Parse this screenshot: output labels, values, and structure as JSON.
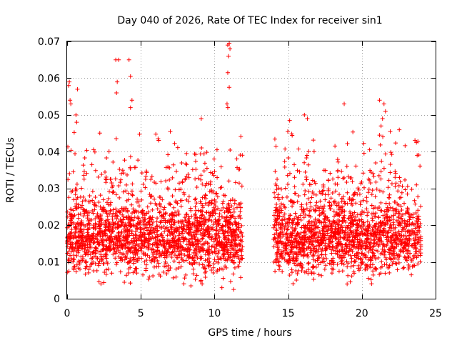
{
  "chart_data": {
    "type": "scatter",
    "title": "Day 040 of 2026, Rate Of TEC Index for receiver sin1",
    "xlabel": "GPS time / hours",
    "ylabel": "ROTI / TECUs",
    "xlim": [
      0,
      25
    ],
    "ylim": [
      0,
      0.07
    ],
    "xticks": [
      0,
      5,
      10,
      15,
      20,
      25
    ],
    "xtick_labels": [
      "0",
      "5",
      "10",
      "15",
      "20",
      "25"
    ],
    "yticks": [
      0,
      0.01,
      0.02,
      0.03,
      0.04,
      0.05,
      0.06,
      0.07
    ],
    "ytick_labels": [
      "0",
      "0.01",
      "0.02",
      "0.03",
      "0.04",
      "0.05",
      "0.06",
      "0.07"
    ],
    "grid": true,
    "marker": "+",
    "color": "#ff0000",
    "series": [
      {
        "name": "ROTI",
        "segments": [
          {
            "x_start": 0.0,
            "x_end": 11.9,
            "typical_min": 0.006,
            "typical_max": 0.03,
            "median": 0.016
          },
          {
            "x_start": 14.0,
            "x_end": 24.0,
            "typical_min": 0.006,
            "typical_max": 0.03,
            "median": 0.016
          }
        ],
        "outliers": [
          {
            "x": 0.1,
            "y": 0.058
          },
          {
            "x": 0.15,
            "y": 0.059
          },
          {
            "x": 0.2,
            "y": 0.054
          },
          {
            "x": 0.25,
            "y": 0.053
          },
          {
            "x": 0.7,
            "y": 0.057
          },
          {
            "x": 0.6,
            "y": 0.05
          },
          {
            "x": 0.65,
            "y": 0.048
          },
          {
            "x": 3.3,
            "y": 0.065
          },
          {
            "x": 3.5,
            "y": 0.065
          },
          {
            "x": 4.2,
            "y": 0.065
          },
          {
            "x": 3.4,
            "y": 0.059
          },
          {
            "x": 3.35,
            "y": 0.056
          },
          {
            "x": 4.3,
            "y": 0.0605
          },
          {
            "x": 4.4,
            "y": 0.054
          },
          {
            "x": 4.3,
            "y": 0.052
          },
          {
            "x": 10.9,
            "y": 0.069
          },
          {
            "x": 11.0,
            "y": 0.0695
          },
          {
            "x": 11.05,
            "y": 0.068
          },
          {
            "x": 10.95,
            "y": 0.066
          },
          {
            "x": 10.9,
            "y": 0.0615
          },
          {
            "x": 11.0,
            "y": 0.0575
          },
          {
            "x": 10.85,
            "y": 0.053
          },
          {
            "x": 10.9,
            "y": 0.052
          },
          {
            "x": 9.1,
            "y": 0.049
          },
          {
            "x": 7.0,
            "y": 0.0455
          },
          {
            "x": 18.8,
            "y": 0.053
          },
          {
            "x": 16.1,
            "y": 0.05
          },
          {
            "x": 16.3,
            "y": 0.049
          },
          {
            "x": 15.1,
            "y": 0.0485
          },
          {
            "x": 21.2,
            "y": 0.054
          },
          {
            "x": 21.5,
            "y": 0.053
          },
          {
            "x": 21.6,
            "y": 0.051
          },
          {
            "x": 21.4,
            "y": 0.049
          },
          {
            "x": 21.3,
            "y": 0.047
          },
          {
            "x": 21.2,
            "y": 0.0445
          },
          {
            "x": 23.7,
            "y": 0.0425
          },
          {
            "x": 23.8,
            "y": 0.0428
          },
          {
            "x": 23.75,
            "y": 0.039
          },
          {
            "x": 10.5,
            "y": 0.003
          },
          {
            "x": 11.3,
            "y": 0.0025
          },
          {
            "x": 8.4,
            "y": 0.0035
          },
          {
            "x": 19.0,
            "y": 0.004
          }
        ]
      }
    ]
  }
}
